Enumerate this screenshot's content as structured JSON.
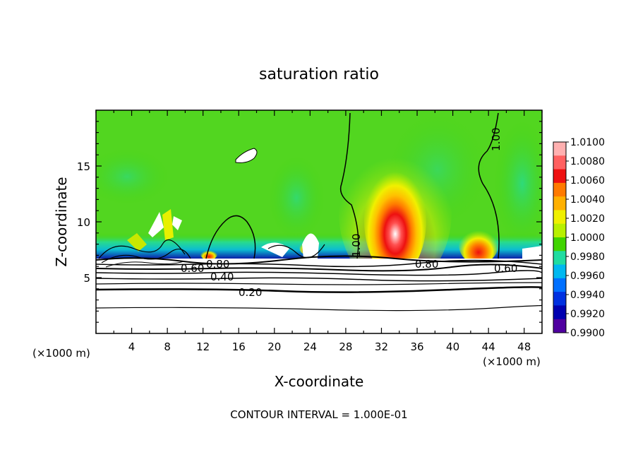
{
  "chart_data": {
    "type": "heatmap",
    "title": "saturation ratio",
    "xlabel": "X-coordinate",
    "ylabel": "Z-coordinate",
    "x_unit_label": "(×1000 m)",
    "x_unit_label_2": "(×1000 m)",
    "footer": "CONTOUR INTERVAL = 1.000E-01",
    "xlim": [
      0,
      50
    ],
    "ylim": [
      0,
      20
    ],
    "x_ticks": [
      4,
      8,
      12,
      16,
      20,
      24,
      28,
      32,
      36,
      40,
      44,
      48
    ],
    "y_ticks": [
      5,
      10,
      15
    ],
    "colorbar": {
      "range": [
        0.99,
        1.01
      ],
      "labels": [
        "1.0100",
        "1.0080",
        "1.0060",
        "1.0040",
        "1.0020",
        "1.0000",
        "0.9980",
        "0.9960",
        "0.9940",
        "0.9920",
        "0.9900"
      ],
      "colors": [
        "#ffb0b0",
        "#ff6060",
        "#ee1010",
        "#ff7a00",
        "#ffb000",
        "#f0f000",
        "#b8f000",
        "#40d400",
        "#20dca0",
        "#00b8f0",
        "#0070ff",
        "#0030e0",
        "#0000b0",
        "#5000a0"
      ]
    },
    "contour_labels": [
      "0.20",
      "0.40",
      "0.60",
      "0.80",
      "0.80",
      "0.60",
      "0.80",
      "0.60",
      "1.00",
      "1.00"
    ]
  }
}
